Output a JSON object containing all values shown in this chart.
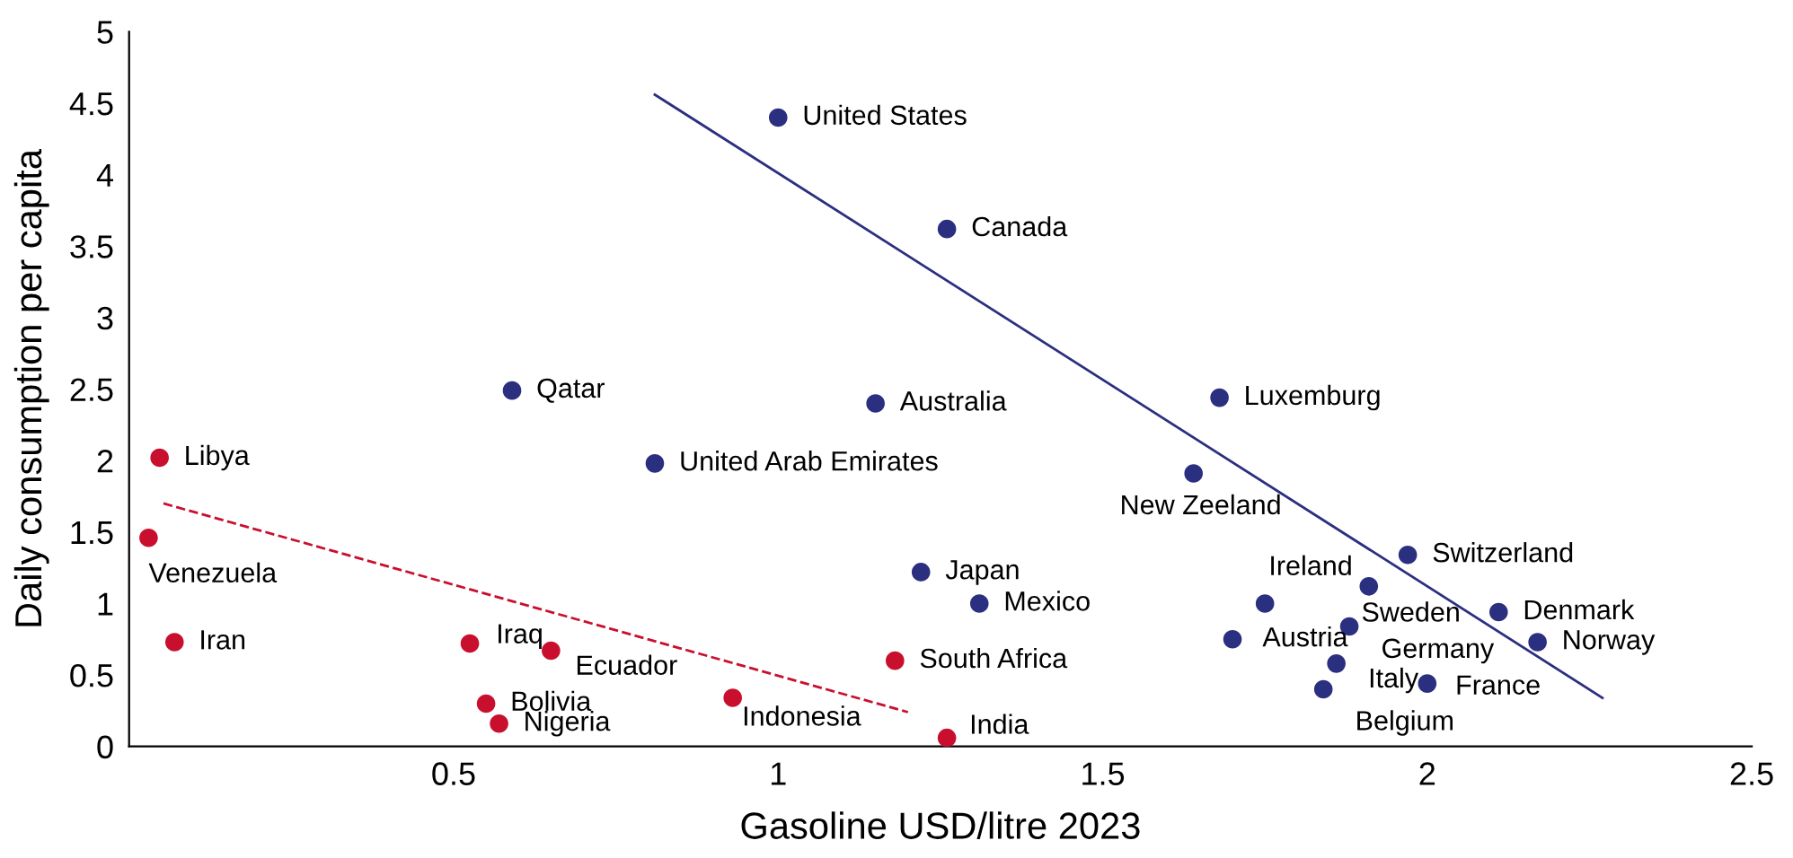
{
  "chart_data": {
    "type": "scatter",
    "xlabel": "Gasoline USD/litre 2023",
    "ylabel": "Daily consumption per capita",
    "xlim": [
      0,
      2.5
    ],
    "xticks": [
      0.5,
      1,
      1.5,
      2,
      2.5
    ],
    "ylim": [
      0,
      5
    ],
    "yticks": [
      0,
      0.5,
      1,
      1.5,
      2,
      2.5,
      3,
      3.5,
      4,
      4.5,
      5
    ],
    "grid": false,
    "legend": false,
    "marker": "circle",
    "series": [
      {
        "color": "#c8102e",
        "x": [
          0.047,
          0.03,
          0.07,
          0.525,
          0.65,
          0.55,
          0.57,
          0.93,
          1.18,
          1.26
        ],
        "values": [
          2.02,
          1.46,
          0.73,
          0.72,
          0.67,
          0.3,
          0.16,
          0.34,
          0.6,
          0.06
        ]
      },
      {
        "color": "#2b2f7f",
        "x": [
          1.0,
          1.26,
          0.59,
          1.15,
          0.81,
          1.68,
          1.64,
          1.22,
          1.31,
          1.97,
          1.75,
          1.91,
          2.11,
          2.17,
          1.7,
          1.88,
          1.86,
          2.0,
          1.84
        ],
        "values": [
          4.4,
          3.62,
          2.49,
          2.4,
          1.98,
          2.44,
          1.91,
          1.22,
          1.0,
          1.34,
          1.0,
          1.12,
          0.94,
          0.73,
          0.75,
          0.84,
          0.58,
          0.44,
          0.4
        ]
      },
      {
        "type": "line",
        "color": "#2b2f7f",
        "line_style": "solid",
        "marker": "none",
        "x": [
          0.81,
          2.27
        ],
        "values": [
          4.56,
          0.34
        ]
      },
      {
        "type": "line",
        "color": "#c8102e",
        "line_style": "dashed",
        "marker": "none",
        "x": [
          0.053,
          1.2
        ],
        "values": [
          1.7,
          0.24
        ]
      }
    ],
    "annotations": [
      {
        "text": "Libya",
        "x": 0.047,
        "y": 2.02
      },
      {
        "text": "Venezuela",
        "x": 0.03,
        "y": 1.46
      },
      {
        "text": "Iran",
        "x": 0.07,
        "y": 0.73
      },
      {
        "text": "Iraq",
        "x": 0.525,
        "y": 0.72
      },
      {
        "text": "Ecuador",
        "x": 0.65,
        "y": 0.67
      },
      {
        "text": "Bolivia",
        "x": 0.55,
        "y": 0.3
      },
      {
        "text": "Nigeria",
        "x": 0.57,
        "y": 0.16
      },
      {
        "text": "Indonesia",
        "x": 0.93,
        "y": 0.34
      },
      {
        "text": "South Africa",
        "x": 1.18,
        "y": 0.6
      },
      {
        "text": "India",
        "x": 1.26,
        "y": 0.06
      },
      {
        "text": "United States",
        "x": 1.0,
        "y": 4.4
      },
      {
        "text": "Canada",
        "x": 1.26,
        "y": 3.62
      },
      {
        "text": "Qatar",
        "x": 0.59,
        "y": 2.49
      },
      {
        "text": "Australia",
        "x": 1.15,
        "y": 2.4
      },
      {
        "text": "United Arab Emirates",
        "x": 0.81,
        "y": 1.98
      },
      {
        "text": "Luxemburg",
        "x": 1.68,
        "y": 2.44
      },
      {
        "text": "New Zeeland",
        "x": 1.64,
        "y": 1.91
      },
      {
        "text": "Japan",
        "x": 1.22,
        "y": 1.22
      },
      {
        "text": "Mexico",
        "x": 1.31,
        "y": 1.0
      },
      {
        "text": "Switzerland",
        "x": 1.97,
        "y": 1.34
      },
      {
        "text": "Ireland",
        "x": 1.75,
        "y": 1.0
      },
      {
        "text": "Sweden",
        "x": 1.91,
        "y": 1.12
      },
      {
        "text": "Denmark",
        "x": 2.11,
        "y": 0.94
      },
      {
        "text": "Norway",
        "x": 2.17,
        "y": 0.73
      },
      {
        "text": "Austria",
        "x": 1.7,
        "y": 0.75
      },
      {
        "text": "Germany",
        "x": 1.88,
        "y": 0.84
      },
      {
        "text": "Italy",
        "x": 1.86,
        "y": 0.58
      },
      {
        "text": "France",
        "x": 2.0,
        "y": 0.44
      },
      {
        "text": "Belgium",
        "x": 1.84,
        "y": 0.4
      }
    ]
  }
}
